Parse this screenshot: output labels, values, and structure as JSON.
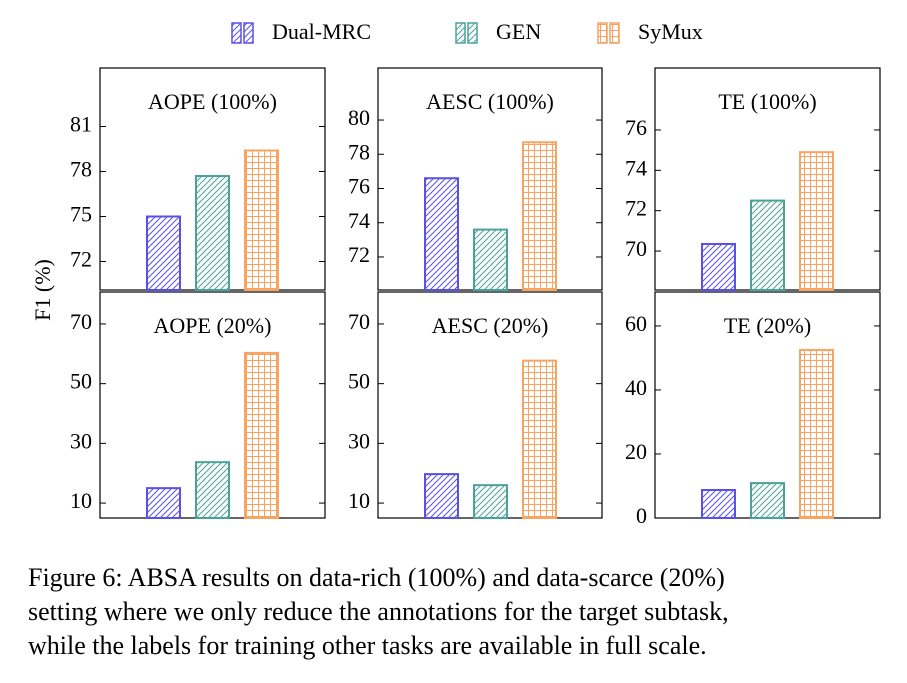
{
  "legend": [
    {
      "name": "Dual-MRC",
      "color": "#5a50e6",
      "pattern": "hatch"
    },
    {
      "name": "GEN",
      "color": "#4aa39a",
      "pattern": "hatch"
    },
    {
      "name": "SyMux",
      "color": "#f5a462",
      "pattern": "grid"
    }
  ],
  "y_label": "F1 (%)",
  "chart_data": [
    {
      "type": "bar",
      "title": "AOPE (100%)",
      "values": [
        75.0,
        77.7,
        79.4
      ],
      "ylim": [
        70.1,
        84.9
      ],
      "yticks": [
        72,
        75,
        78,
        81
      ]
    },
    {
      "type": "bar",
      "title": "AESC (100%)",
      "values": [
        76.6,
        73.6,
        78.7
      ],
      "ylim": [
        70.07,
        83.04
      ],
      "yticks": [
        72,
        74,
        76,
        78,
        80
      ]
    },
    {
      "type": "bar",
      "title": "TE (100%)",
      "values": [
        70.35,
        72.5,
        74.9
      ],
      "ylim": [
        68.07,
        79.07
      ],
      "yticks": [
        70,
        72,
        74,
        76
      ]
    },
    {
      "type": "bar",
      "title": "AOPE (20%)",
      "values": [
        15,
        23.7,
        60.3
      ],
      "ylim": [
        5,
        80.7
      ],
      "yticks": [
        10,
        30,
        50,
        70
      ]
    },
    {
      "type": "bar",
      "title": "AESC (20%)",
      "values": [
        19.7,
        16,
        57.7
      ],
      "ylim": [
        5,
        80.7
      ],
      "yticks": [
        10,
        30,
        50,
        70
      ]
    },
    {
      "type": "bar",
      "title": "TE (20%)",
      "values": [
        8.75,
        10.9,
        52.5
      ],
      "ylim": [
        0,
        70.6
      ],
      "yticks": [
        0,
        20,
        40,
        60
      ]
    }
  ],
  "caption": [
    "Figure 6: ABSA results on data-rich (100%) and data-scarce (20%)",
    "setting where we only reduce the annotations for the target subtask,",
    "while the labels for training other tasks are available in full scale."
  ]
}
